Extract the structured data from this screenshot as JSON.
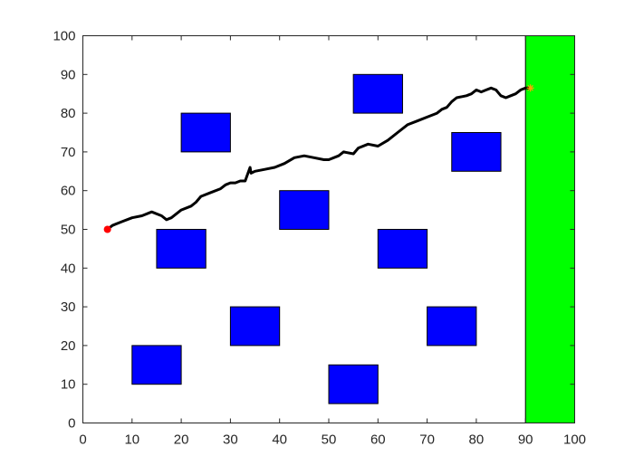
{
  "chart_data": {
    "type": "scatter",
    "title": "",
    "xlabel": "",
    "ylabel": "",
    "xlim": [
      0,
      100
    ],
    "ylim": [
      0,
      100
    ],
    "xticks": [
      0,
      10,
      20,
      30,
      40,
      50,
      60,
      70,
      80,
      90,
      100
    ],
    "yticks": [
      0,
      10,
      20,
      30,
      40,
      50,
      60,
      70,
      80,
      90,
      100
    ],
    "grid": false,
    "legend": "none",
    "goal_region": {
      "x": [
        90,
        100
      ],
      "y": [
        0,
        100
      ],
      "color": "#00ff00"
    },
    "obstacles": {
      "color": "#0000ff",
      "rects": [
        {
          "x": [
            10,
            20
          ],
          "y": [
            10,
            20
          ]
        },
        {
          "x": [
            15,
            25
          ],
          "y": [
            40,
            50
          ]
        },
        {
          "x": [
            20,
            30
          ],
          "y": [
            70,
            80
          ]
        },
        {
          "x": [
            30,
            40
          ],
          "y": [
            20,
            30
          ]
        },
        {
          "x": [
            40,
            50
          ],
          "y": [
            50,
            60
          ]
        },
        {
          "x": [
            50,
            60
          ],
          "y": [
            5,
            15
          ]
        },
        {
          "x": [
            55,
            65
          ],
          "y": [
            80,
            90
          ]
        },
        {
          "x": [
            60,
            70
          ],
          "y": [
            40,
            50
          ]
        },
        {
          "x": [
            70,
            80
          ],
          "y": [
            20,
            30
          ]
        },
        {
          "x": [
            75,
            85
          ],
          "y": [
            65,
            75
          ]
        }
      ]
    },
    "path": {
      "color": "#000000",
      "x": [
        5,
        6,
        8,
        10,
        12,
        14,
        16,
        17,
        18,
        20,
        22,
        23,
        24,
        26,
        28,
        29,
        30,
        31,
        32,
        33,
        34,
        34.2,
        35,
        37,
        39,
        41,
        43,
        45,
        47,
        49,
        50,
        52,
        53,
        55,
        56,
        58,
        60,
        62,
        64,
        66,
        68,
        70,
        72,
        73,
        74,
        75,
        76,
        78,
        79,
        80,
        81,
        82,
        83,
        84,
        85,
        86,
        87,
        88,
        89,
        90,
        91
      ],
      "y": [
        50,
        51,
        52,
        53,
        53.5,
        54.5,
        53.5,
        52.5,
        53,
        55,
        56,
        57,
        58.5,
        59.5,
        60.5,
        61.5,
        62,
        62,
        62.5,
        62.5,
        66,
        64.5,
        65,
        65.5,
        66,
        67,
        68.5,
        69,
        68.5,
        68,
        68,
        69,
        70,
        69.5,
        71,
        72,
        71.5,
        73,
        75,
        77,
        78,
        79,
        80,
        81,
        81.5,
        83,
        84,
        84.5,
        85,
        86,
        85.5,
        86,
        86.5,
        86,
        84.5,
        84,
        84.5,
        85,
        86,
        86.5,
        86.5
      ]
    },
    "start": {
      "x": 5,
      "y": 50,
      "color": "#ff0000"
    },
    "end": {
      "x": 91,
      "y": 86.5,
      "color": "#ffa500"
    }
  }
}
